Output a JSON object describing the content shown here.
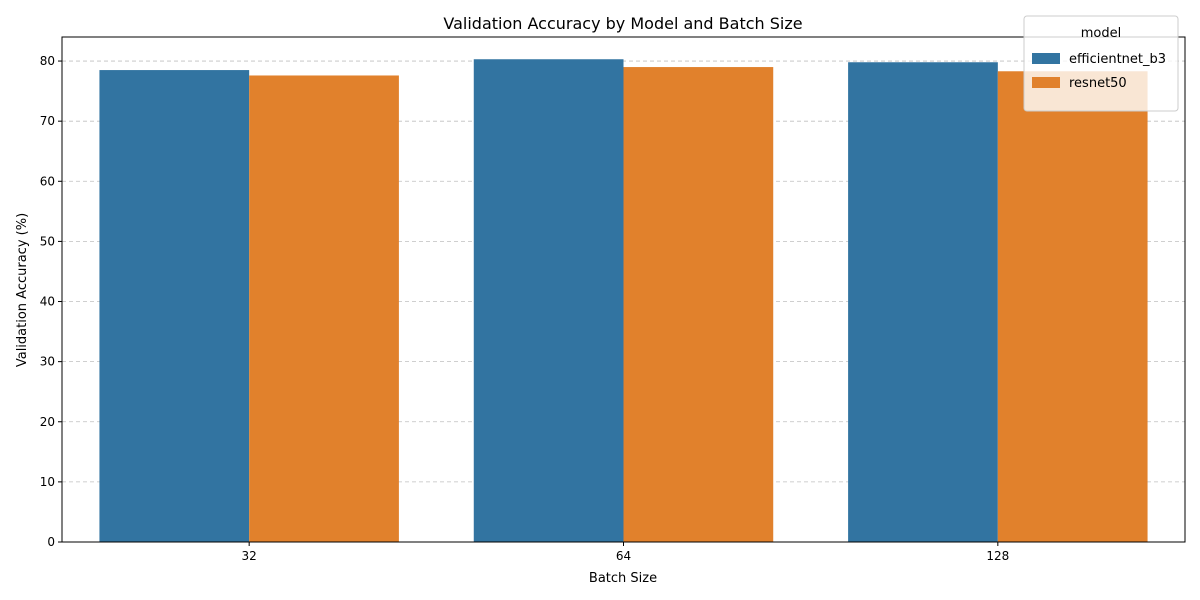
{
  "chart_data": {
    "type": "bar",
    "title": "Validation Accuracy by Model and Batch Size",
    "xlabel": "Batch Size",
    "ylabel": "Validation Accuracy (%)",
    "categories": [
      "32",
      "64",
      "128"
    ],
    "ylim": [
      0,
      84
    ],
    "yticks": [
      0,
      10,
      20,
      30,
      40,
      50,
      60,
      70,
      80
    ],
    "grid": true,
    "legend": {
      "title": "model",
      "position": "top-right"
    },
    "series": [
      {
        "name": "efficientnet_b3",
        "color": "#3274a1",
        "values": [
          78.5,
          80.3,
          79.8
        ]
      },
      {
        "name": "resnet50",
        "color": "#e1812c",
        "values": [
          77.6,
          79.0,
          78.3
        ]
      }
    ]
  }
}
